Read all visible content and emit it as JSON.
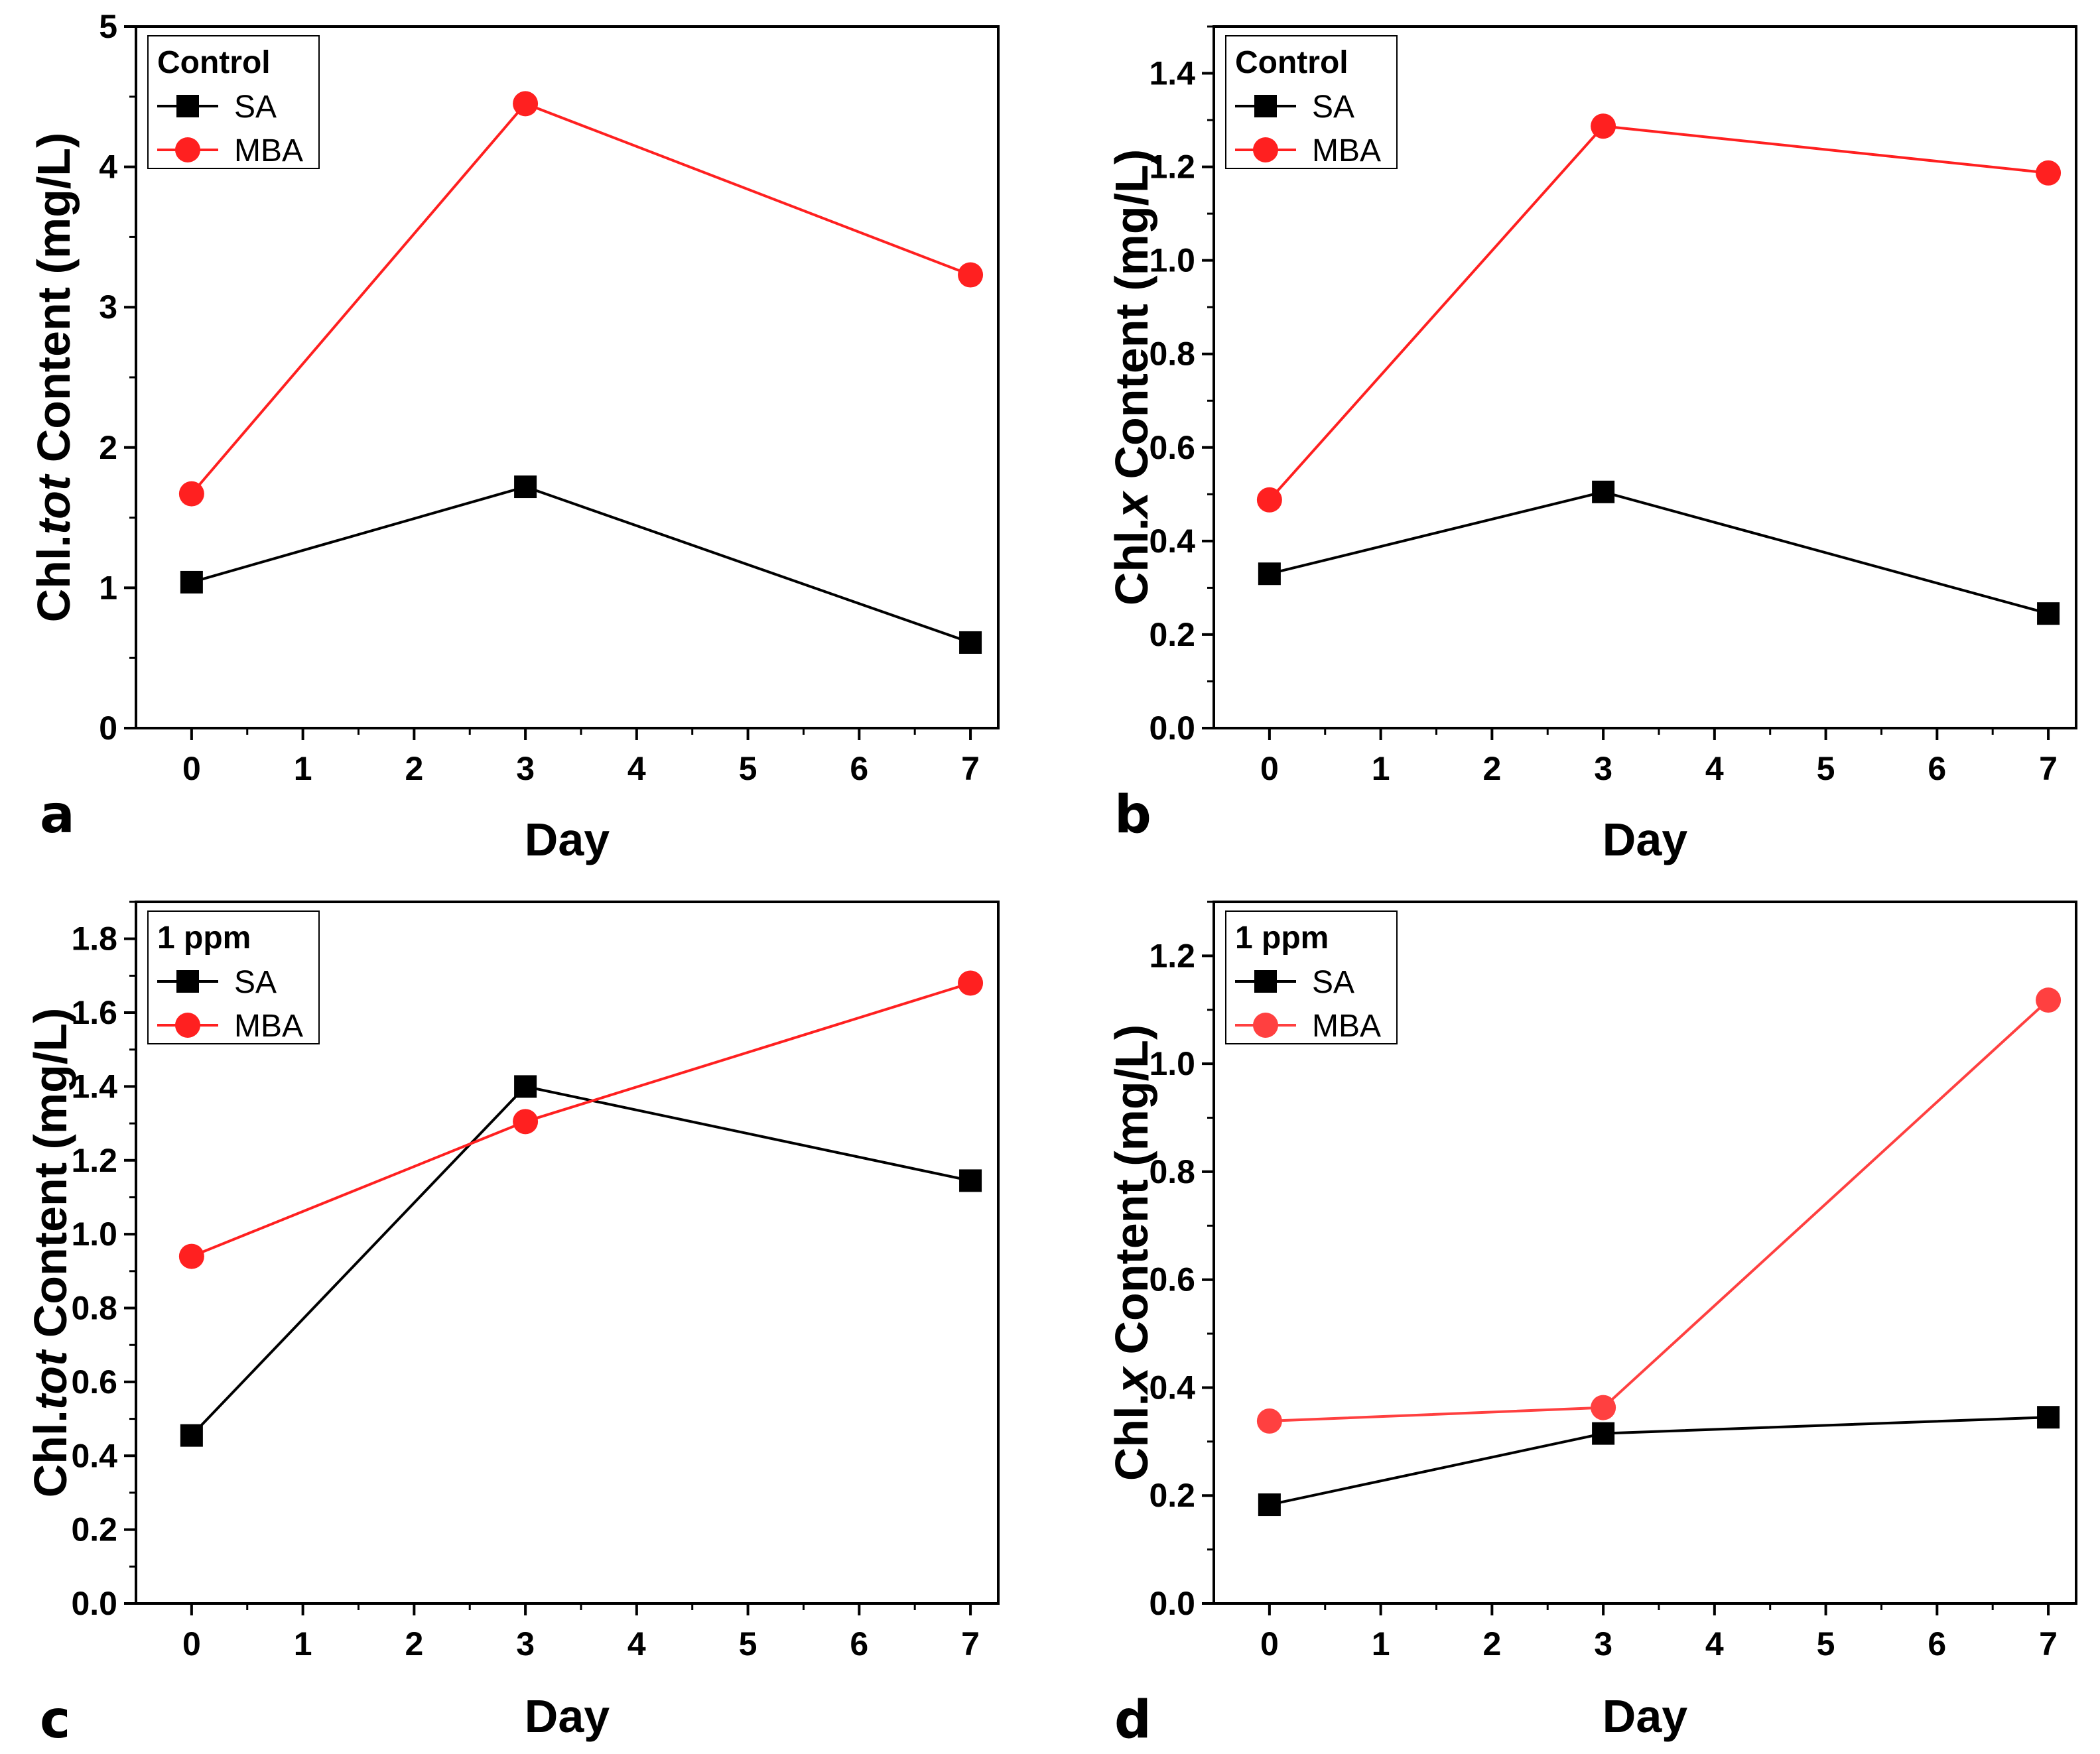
{
  "colors": {
    "SA": "#000000",
    "MBA": "#ff2020",
    "MBA_light": "#ff4040"
  },
  "chart_data": [
    {
      "type": "line",
      "panel": "a",
      "xlabel": "Day",
      "ylabel_prefix": "Chl.",
      "ylabel_italic": "tot",
      "ylabel_suffix": " Content (mg/L)",
      "xlim": [
        -0.5,
        7.25
      ],
      "ylim": [
        0,
        5
      ],
      "xticks": [
        0,
        1,
        2,
        3,
        4,
        5,
        6,
        7
      ],
      "yticks": [
        0,
        1,
        2,
        3,
        4,
        5
      ],
      "ytick_labels": [
        "0",
        "1",
        "2",
        "3",
        "4",
        "5"
      ],
      "yminor": 0.5,
      "legend_title": "Control",
      "legend_position": "top-left",
      "series": [
        {
          "name": "SA",
          "marker": "square",
          "color": "#000000",
          "x": [
            0,
            3,
            7
          ],
          "values": [
            1.04,
            1.72,
            0.61
          ]
        },
        {
          "name": "MBA",
          "marker": "circle",
          "color": "#ff2020",
          "x": [
            0,
            3,
            7
          ],
          "values": [
            1.67,
            4.45,
            3.23
          ]
        }
      ]
    },
    {
      "type": "line",
      "panel": "b",
      "xlabel": "Day",
      "ylabel_prefix": "Chl.",
      "ylabel_italic": "x",
      "ylabel_suffix": " Content (mg/L)",
      "xlim": [
        -0.5,
        7.25
      ],
      "ylim": [
        0,
        1.5
      ],
      "xticks": [
        0,
        1,
        2,
        3,
        4,
        5,
        6,
        7
      ],
      "yticks": [
        0,
        0.2,
        0.4,
        0.6,
        0.8,
        1.0,
        1.2,
        1.4
      ],
      "ytick_labels": [
        "0.0",
        "0.2",
        "0.4",
        "0.6",
        "0.8",
        "1.0",
        "1.2",
        "1.4"
      ],
      "yminor": 0.1,
      "legend_title": "Control",
      "legend_position": "top-left",
      "series": [
        {
          "name": "SA",
          "marker": "square",
          "color": "#000000",
          "x": [
            0,
            3,
            7
          ],
          "values": [
            0.33,
            0.505,
            0.245
          ]
        },
        {
          "name": "MBA",
          "marker": "circle",
          "color": "#ff2020",
          "x": [
            0,
            3,
            7
          ],
          "values": [
            0.488,
            1.287,
            1.187
          ]
        }
      ]
    },
    {
      "type": "line",
      "panel": "c",
      "xlabel": "Day",
      "ylabel_prefix": "Chl.",
      "ylabel_italic": "tot",
      "ylabel_suffix": " Content (mg/L)",
      "xlim": [
        -0.5,
        7.25
      ],
      "ylim": [
        0,
        1.9
      ],
      "xticks": [
        0,
        1,
        2,
        3,
        4,
        5,
        6,
        7
      ],
      "yticks": [
        0,
        0.2,
        0.4,
        0.6,
        0.8,
        1.0,
        1.2,
        1.4,
        1.6,
        1.8
      ],
      "ytick_labels": [
        "0.0",
        "0.2",
        "0.4",
        "0.6",
        "0.8",
        "1.0",
        "1.2",
        "1.4",
        "1.6",
        "1.8"
      ],
      "yminor": 0.1,
      "legend_title": "1 ppm",
      "legend_position": "top-left",
      "series": [
        {
          "name": "SA",
          "marker": "square",
          "color": "#000000",
          "x": [
            0,
            3,
            7
          ],
          "values": [
            0.455,
            1.4,
            1.145
          ]
        },
        {
          "name": "MBA",
          "marker": "circle",
          "color": "#ff2020",
          "x": [
            0,
            3,
            7
          ],
          "values": [
            0.94,
            1.305,
            1.68
          ]
        }
      ]
    },
    {
      "type": "line",
      "panel": "d",
      "xlabel": "Day",
      "ylabel_prefix": "Chl.",
      "ylabel_italic": "x",
      "ylabel_suffix": " Content (mg/L)",
      "xlim": [
        -0.5,
        7.25
      ],
      "ylim": [
        0,
        1.3
      ],
      "xticks": [
        0,
        1,
        2,
        3,
        4,
        5,
        6,
        7
      ],
      "yticks": [
        0,
        0.2,
        0.4,
        0.6,
        0.8,
        1.0,
        1.2
      ],
      "ytick_labels": [
        "0.0",
        "0.2",
        "0.4",
        "0.6",
        "0.8",
        "1.0",
        "1.2"
      ],
      "yminor": 0.1,
      "legend_title": "1 ppm",
      "legend_position": "top-left",
      "series": [
        {
          "name": "SA",
          "marker": "square",
          "color": "#000000",
          "x": [
            0,
            3,
            7
          ],
          "values": [
            0.183,
            0.315,
            0.345
          ]
        },
        {
          "name": "MBA",
          "marker": "circle",
          "color": "#ff4040",
          "x": [
            0,
            3,
            7
          ],
          "values": [
            0.338,
            0.363,
            1.118
          ]
        }
      ]
    }
  ]
}
